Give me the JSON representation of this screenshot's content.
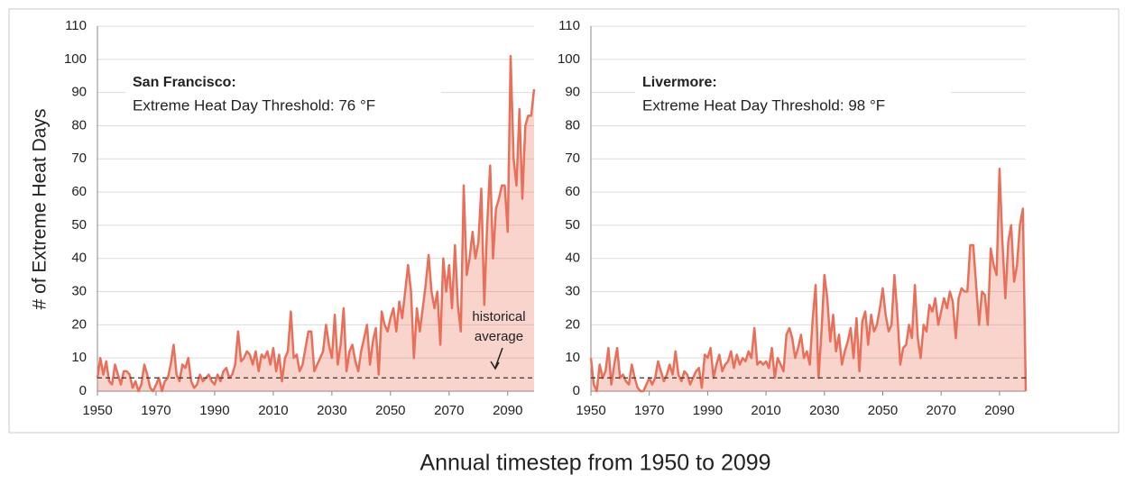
{
  "chart_data": [
    {
      "type": "line",
      "title": "San Francisco:",
      "subtitle": "Extreme Heat Day Threshold: 76 °F",
      "ylabel": "# of Extreme Heat Days",
      "xlabel": "Annual timestep from 1950 to 2099",
      "annotation": [
        "historical",
        "average"
      ],
      "reference_line": 4,
      "xlim": [
        1950,
        2099
      ],
      "xticks": [
        1950,
        1970,
        1990,
        2010,
        2030,
        2050,
        2070,
        2090
      ],
      "ylim": [
        0,
        110
      ],
      "yticks": [
        0,
        10,
        20,
        30,
        40,
        50,
        60,
        70,
        80,
        90,
        100,
        110
      ],
      "grid": true,
      "x": [
        1950,
        1951,
        1952,
        1953,
        1954,
        1955,
        1956,
        1957,
        1958,
        1959,
        1960,
        1961,
        1962,
        1963,
        1964,
        1965,
        1966,
        1967,
        1968,
        1969,
        1970,
        1971,
        1972,
        1973,
        1974,
        1975,
        1976,
        1977,
        1978,
        1979,
        1980,
        1981,
        1982,
        1983,
        1984,
        1985,
        1986,
        1987,
        1988,
        1989,
        1990,
        1991,
        1992,
        1993,
        1994,
        1995,
        1996,
        1997,
        1998,
        1999,
        2000,
        2001,
        2002,
        2003,
        2004,
        2005,
        2006,
        2007,
        2008,
        2009,
        2010,
        2011,
        2012,
        2013,
        2014,
        2015,
        2016,
        2017,
        2018,
        2019,
        2020,
        2021,
        2022,
        2023,
        2024,
        2025,
        2026,
        2027,
        2028,
        2029,
        2030,
        2031,
        2032,
        2033,
        2034,
        2035,
        2036,
        2037,
        2038,
        2039,
        2040,
        2041,
        2042,
        2043,
        2044,
        2045,
        2046,
        2047,
        2048,
        2049,
        2050,
        2051,
        2052,
        2053,
        2054,
        2055,
        2056,
        2057,
        2058,
        2059,
        2060,
        2061,
        2062,
        2063,
        2064,
        2065,
        2066,
        2067,
        2068,
        2069,
        2070,
        2071,
        2072,
        2073,
        2074,
        2075,
        2076,
        2077,
        2078,
        2079,
        2080,
        2081,
        2082,
        2083,
        2084,
        2085,
        2086,
        2087,
        2088,
        2089,
        2090,
        2091,
        2092,
        2093,
        2094,
        2095,
        2096,
        2097,
        2098,
        2099
      ],
      "series": [
        {
          "color": "#e8705a",
          "values": [
            4,
            10,
            5,
            9,
            3,
            2,
            8,
            5,
            2,
            6,
            6,
            5,
            1,
            3,
            0,
            2,
            8,
            5,
            1,
            0,
            2,
            4,
            0,
            3,
            4,
            8,
            14,
            5,
            3,
            8,
            7,
            10,
            3,
            1,
            2,
            5,
            3,
            4,
            5,
            3,
            2,
            5,
            3,
            6,
            7,
            4,
            5,
            8,
            18,
            9,
            10,
            12,
            11,
            8,
            12,
            6,
            11,
            10,
            12,
            8,
            13,
            6,
            11,
            3,
            10,
            12,
            24,
            10,
            11,
            6,
            8,
            13,
            18,
            18,
            6,
            8,
            10,
            12,
            20,
            14,
            10,
            23,
            8,
            14,
            25,
            6,
            12,
            14,
            9,
            6,
            12,
            16,
            20,
            8,
            15,
            19,
            5,
            24,
            20,
            18,
            22,
            25,
            18,
            27,
            22,
            30,
            38,
            30,
            10,
            25,
            18,
            25,
            32,
            41,
            30,
            25,
            30,
            14,
            40,
            30,
            38,
            25,
            44,
            26,
            18,
            62,
            35,
            40,
            48,
            40,
            45,
            61,
            26,
            50,
            68,
            40,
            55,
            58,
            62,
            62,
            48,
            101,
            70,
            62,
            85,
            58,
            80,
            83,
            83,
            91
          ]
        }
      ]
    },
    {
      "type": "line",
      "title": "Livermore:",
      "subtitle": "Extreme Heat Day Threshold: 98 °F",
      "reference_line": 4,
      "xlim": [
        1950,
        2099
      ],
      "xticks": [
        1950,
        1970,
        1990,
        2010,
        2030,
        2050,
        2070,
        2090
      ],
      "ylim": [
        0,
        110
      ],
      "yticks": [
        0,
        10,
        20,
        30,
        40,
        50,
        60,
        70,
        80,
        90,
        100,
        110
      ],
      "grid": true,
      "x": [
        1950,
        1951,
        1952,
        1953,
        1954,
        1955,
        1956,
        1957,
        1958,
        1959,
        1960,
        1961,
        1962,
        1963,
        1964,
        1965,
        1966,
        1967,
        1968,
        1969,
        1970,
        1971,
        1972,
        1973,
        1974,
        1975,
        1976,
        1977,
        1978,
        1979,
        1980,
        1981,
        1982,
        1983,
        1984,
        1985,
        1986,
        1987,
        1988,
        1989,
        1990,
        1991,
        1992,
        1993,
        1994,
        1995,
        1996,
        1997,
        1998,
        1999,
        2000,
        2001,
        2002,
        2003,
        2004,
        2005,
        2006,
        2007,
        2008,
        2009,
        2010,
        2011,
        2012,
        2013,
        2014,
        2015,
        2016,
        2017,
        2018,
        2019,
        2020,
        2021,
        2022,
        2023,
        2024,
        2025,
        2026,
        2027,
        2028,
        2029,
        2030,
        2031,
        2032,
        2033,
        2034,
        2035,
        2036,
        2037,
        2038,
        2039,
        2040,
        2041,
        2042,
        2043,
        2044,
        2045,
        2046,
        2047,
        2048,
        2049,
        2050,
        2051,
        2052,
        2053,
        2054,
        2055,
        2056,
        2057,
        2058,
        2059,
        2060,
        2061,
        2062,
        2063,
        2064,
        2065,
        2066,
        2067,
        2068,
        2069,
        2070,
        2071,
        2072,
        2073,
        2074,
        2075,
        2076,
        2077,
        2078,
        2079,
        2080,
        2081,
        2082,
        2083,
        2084,
        2085,
        2086,
        2087,
        2088,
        2089,
        2090,
        2091,
        2092,
        2093,
        2094,
        2095,
        2096,
        2097,
        2098,
        2099
      ],
      "series": [
        {
          "color": "#e8705a",
          "values": [
            10,
            2,
            0,
            8,
            4,
            6,
            13,
            2,
            8,
            13,
            4,
            5,
            3,
            2,
            8,
            4,
            1,
            0,
            0,
            2,
            4,
            2,
            4,
            9,
            6,
            3,
            5,
            8,
            5,
            12,
            5,
            3,
            6,
            5,
            2,
            4,
            6,
            7,
            1,
            11,
            10,
            13,
            4,
            8,
            11,
            6,
            8,
            9,
            12,
            7,
            11,
            8,
            10,
            9,
            12,
            10,
            19,
            8,
            9,
            8,
            9,
            7,
            13,
            4,
            10,
            8,
            6,
            17,
            19,
            16,
            10,
            13,
            17,
            10,
            12,
            8,
            22,
            32,
            4,
            18,
            35,
            28,
            15,
            23,
            12,
            17,
            8,
            12,
            15,
            19,
            10,
            22,
            6,
            21,
            24,
            14,
            23,
            18,
            20,
            25,
            31,
            23,
            18,
            20,
            35,
            23,
            8,
            13,
            14,
            20,
            16,
            32,
            16,
            10,
            20,
            18,
            26,
            24,
            28,
            20,
            24,
            28,
            25,
            30,
            27,
            16,
            28,
            31,
            30,
            30,
            44,
            44,
            32,
            20,
            30,
            29,
            20,
            43,
            38,
            35,
            67,
            45,
            28,
            45,
            50,
            33,
            38,
            50,
            55,
            0
          ]
        }
      ]
    }
  ]
}
